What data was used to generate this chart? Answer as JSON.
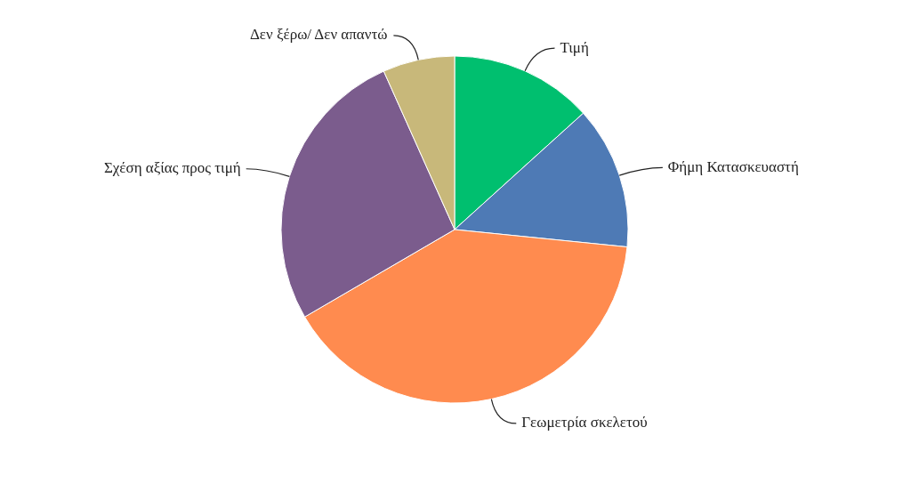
{
  "chart_data": {
    "type": "pie",
    "categories": [
      "Τιμή",
      "Φήμη Κατασκευαστή",
      "Γεωμετρία σκελετού",
      "Σχέση αξίας προς τιμή",
      "Δεν ξέρω/ Δεν απαντώ"
    ],
    "values": [
      13.3,
      13.3,
      40,
      26.7,
      6.7
    ],
    "colors": [
      "#00bf6f",
      "#4e7ab5",
      "#ff8b4f",
      "#7b5c8d",
      "#c8b87a"
    ],
    "legend": false
  }
}
